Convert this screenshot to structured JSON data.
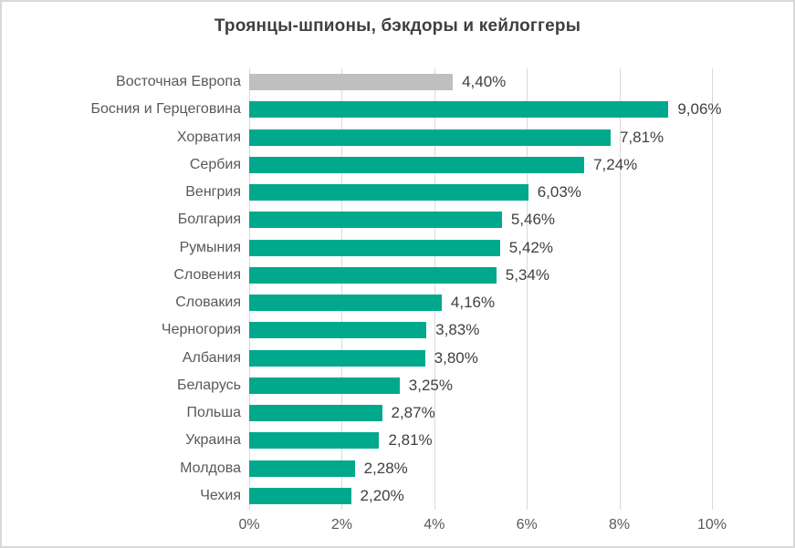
{
  "title": "Троянцы-шпионы, бэкдоры и кейлоггеры",
  "chart_data": {
    "type": "bar",
    "orientation": "horizontal",
    "title": "Троянцы-шпионы, бэкдоры и кейлоггеры",
    "categories": [
      "Восточная Европа",
      "Босния и Герцеговина",
      "Хорватия",
      "Сербия",
      "Венгрия",
      "Болгария",
      "Румыния",
      "Словения",
      "Словакия",
      "Черногория",
      "Албания",
      "Беларусь",
      "Польша",
      "Украина",
      "Молдова",
      "Чехия"
    ],
    "values": [
      4.4,
      9.06,
      7.81,
      7.24,
      6.03,
      5.46,
      5.42,
      5.34,
      4.16,
      3.83,
      3.8,
      3.25,
      2.87,
      2.81,
      2.28,
      2.2
    ],
    "value_labels": [
      "4,40%",
      "9,06%",
      "7,81%",
      "7,24%",
      "6,03%",
      "5,46%",
      "5,42%",
      "5,34%",
      "4,16%",
      "3,83%",
      "3,80%",
      "3,25%",
      "2,87%",
      "2,81%",
      "2,28%",
      "2,20%"
    ],
    "highlight_index": 0,
    "x_ticks_values": [
      0,
      2,
      4,
      6,
      8,
      10
    ],
    "x_tick_labels": [
      "0%",
      "2%",
      "4%",
      "6%",
      "8%",
      "10%"
    ],
    "xlim": [
      0,
      10
    ],
    "grid": "vertical-only",
    "legend": "none",
    "colors": {
      "bar": "#00A88C",
      "highlight_bar": "#BFBFBF",
      "gridline": "#D9D9D9",
      "border": "#D9D9D9",
      "title_text": "#3F3F3F",
      "category_text": "#595959",
      "value_text": "#404040",
      "tick_text": "#595959"
    }
  }
}
